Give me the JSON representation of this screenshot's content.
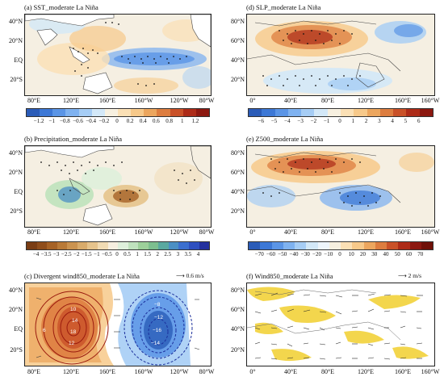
{
  "panels": [
    {
      "id": "a",
      "title": "(a) SST_moderate La Niña",
      "lat_labels": [
        "40°N",
        "20°N",
        "EQ",
        "20°S"
      ],
      "lon_labels": [
        "80°E",
        "120°E",
        "160°E",
        "160°W",
        "120°W",
        "80°W"
      ],
      "colorbar": {
        "ticks": [
          "−1.2",
          "−1",
          "−0.8",
          "−0.6",
          "−0.4",
          "−0.2",
          "0",
          "0.2",
          "0.4",
          "0.6",
          "0.8",
          "1",
          "1.2"
        ],
        "colors": [
          "#2b5cb8",
          "#3d78d6",
          "#5b95e6",
          "#7fb2f0",
          "#a6cdf5",
          "#d3e8f8",
          "#f7f0e0",
          "#fbe0b5",
          "#f7c98a",
          "#eca65e",
          "#dd7d3f",
          "#c95128",
          "#ad2b18",
          "#8c1810"
        ]
      }
    },
    {
      "id": "d",
      "title": "(d) SLP_moderate La Niña",
      "lat_labels": [
        "80°N",
        "60°N",
        "40°N",
        "20°N"
      ],
      "lon_labels": [
        "0°",
        "40°E",
        "80°E",
        "120°E",
        "160°E",
        "160°W"
      ],
      "colorbar": {
        "ticks": [
          "−6",
          "−5",
          "−4",
          "−3",
          "−2",
          "−1",
          "0",
          "1",
          "2",
          "3",
          "4",
          "5",
          "6"
        ],
        "colors": [
          "#2b5cb8",
          "#3d78d6",
          "#5b95e6",
          "#7fb2f0",
          "#a6cdf5",
          "#d3e8f8",
          "#f7f0e0",
          "#fbe0b5",
          "#f7c98a",
          "#eca65e",
          "#dd7d3f",
          "#c95128",
          "#ad2b18",
          "#8c1810"
        ]
      }
    },
    {
      "id": "b",
      "title": "(b) Precipitation_moderate La Niña",
      "lat_labels": [
        "40°N",
        "20°N",
        "EQ",
        "20°S"
      ],
      "lon_labels": [
        "80°E",
        "120°E",
        "160°E",
        "160°W",
        "120°W",
        "80°W"
      ],
      "colorbar": {
        "ticks": [
          "−4",
          "−3.5",
          "−3",
          "−2.5",
          "−2",
          "−1.5",
          "−1",
          "−0.5",
          "0",
          "0.5",
          "1",
          "1.5",
          "2",
          "2.5",
          "3",
          "3.5",
          "4"
        ],
        "colors": [
          "#7a3d14",
          "#8f4d1b",
          "#a66226",
          "#b97a38",
          "#cb9350",
          "#d9ab6b",
          "#e6c38c",
          "#f1dbb3",
          "#f7efe0",
          "#dff0dc",
          "#bfe2bd",
          "#9dd09a",
          "#7dbf8f",
          "#5aa9a0",
          "#4b8fc4",
          "#3c6fcf",
          "#2e4fc0",
          "#23309e"
        ]
      }
    },
    {
      "id": "e",
      "title": "(e) Z500_moderate La Niña",
      "lat_labels": [
        "80°N",
        "60°N",
        "40°N",
        "20°N"
      ],
      "lon_labels": [
        "0°",
        "40°E",
        "80°E",
        "120°E",
        "160°E",
        "160°W"
      ],
      "colorbar": {
        "ticks": [
          "−70",
          "−60",
          "−50",
          "−40",
          "−30",
          "−20",
          "−10",
          "0",
          "10",
          "20",
          "30",
          "40",
          "50",
          "60",
          "70"
        ],
        "colors": [
          "#2b5cb8",
          "#3d78d6",
          "#5b95e6",
          "#7fb2f0",
          "#a6cdf5",
          "#d3e8f8",
          "#eef5fb",
          "#f7f0e0",
          "#fbe0b5",
          "#f7c98a",
          "#eca65e",
          "#dd7d3f",
          "#c95128",
          "#ad2b18",
          "#8c1810",
          "#701008"
        ]
      }
    },
    {
      "id": "c",
      "title": "(c) Divergent wind850_moderate La Niña",
      "reference": "0.6 m/s",
      "lat_labels": [
        "40°N",
        "20°N",
        "EQ",
        "20°S"
      ],
      "lon_labels": [
        "80°E",
        "120°E",
        "160°E",
        "160°W",
        "120°W",
        "80°W"
      ],
      "contour_labels_pos": [
        "2",
        "4",
        "6",
        "8",
        "10",
        "12",
        "14",
        "16",
        "18"
      ],
      "contour_labels_neg": [
        "−2",
        "−4",
        "−6",
        "−8",
        "−10",
        "−12",
        "−14",
        "−16"
      ]
    },
    {
      "id": "f",
      "title": "(f) Wind850_moderate La Niña",
      "reference": "2 m/s",
      "lat_labels": [
        "80°N",
        "60°N",
        "40°N",
        "20°N"
      ],
      "lon_labels": [
        "0°",
        "40°E",
        "80°E",
        "120°E",
        "160°E",
        "160°W"
      ]
    }
  ]
}
